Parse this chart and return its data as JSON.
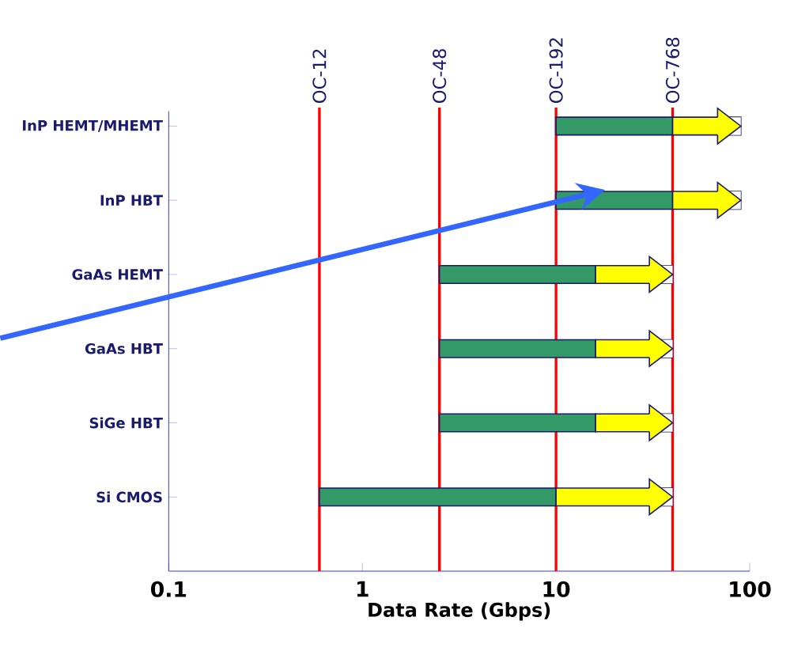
{
  "chart_data": {
    "type": "bar",
    "orientation": "horizontal",
    "log": "x",
    "categories": [
      "InP HEMT/MHEMT",
      "InP HBT",
      "GaAs HEMT",
      "GaAs HBT",
      "SiGe HBT",
      "Si CMOS"
    ],
    "series": [
      {
        "color": "#339966",
        "base": [
          10,
          10,
          2.5,
          2.5,
          2.5,
          0.6
        ],
        "values": [
          30,
          30,
          13.5,
          13.5,
          13.5,
          9.4
        ]
      },
      {
        "color": "#ffff00",
        "base": [
          40,
          40,
          16,
          16,
          16,
          10
        ],
        "values": [
          50,
          50,
          24,
          24,
          24,
          30
        ]
      }
    ],
    "xlim": [
      0.1,
      100
    ],
    "xticks": [
      0.1,
      1,
      10,
      100
    ],
    "xlabel": "Data Rate (Gbps)",
    "ref_lines": [
      {
        "axis": "x",
        "value": 0.6,
        "label": "OC-12",
        "color": "#ff0000"
      },
      {
        "axis": "x",
        "value": 2.5,
        "label": "OC-48",
        "color": "#ff0000"
      },
      {
        "axis": "x",
        "value": 10,
        "label": "OC-192",
        "color": "#ff0000"
      },
      {
        "axis": "x",
        "value": 40,
        "label": "OC-768",
        "color": "#ff0000"
      }
    ]
  }
}
